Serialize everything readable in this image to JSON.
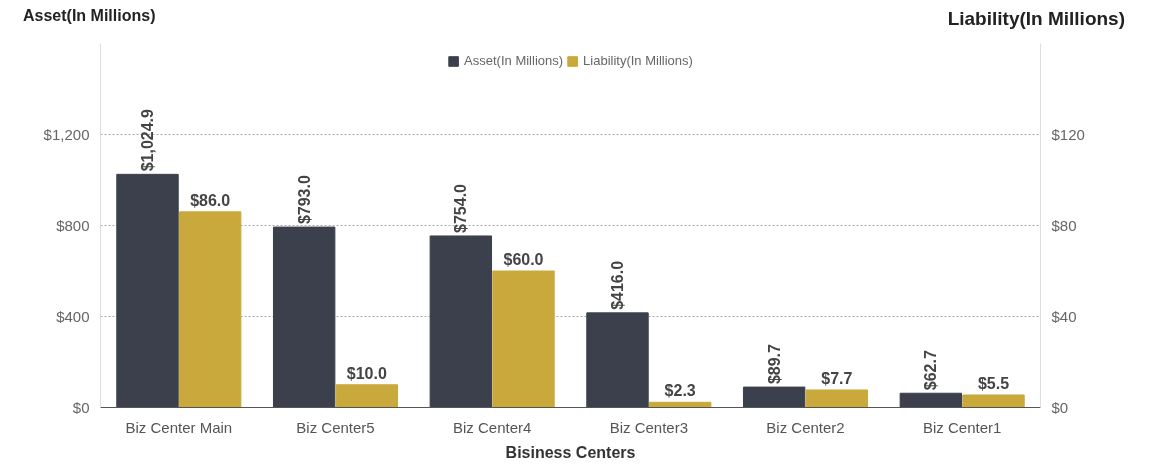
{
  "chart_data": {
    "type": "bar",
    "categories": [
      "Biz Center Main",
      "Biz Center5",
      "Biz Center4",
      "Biz Center3",
      "Biz Center2",
      "Biz Center1"
    ],
    "xlabel": "Bisiness Centers",
    "ylabel": "Asset(In Millions)",
    "y2label": "Liability(In Millions)",
    "series": [
      {
        "name": "Asset(In Millions)",
        "color": "#3b404c",
        "values": [
          1024.9,
          793.0,
          754.0,
          416.0,
          89.7,
          62.7
        ],
        "value_labels": [
          "$1,024.9",
          "$793.0",
          "$754.0",
          "$416.0",
          "$89.7",
          "$62.7"
        ]
      },
      {
        "name": "Liability(In Millions)",
        "color": "#c9a83c",
        "axis": "y2",
        "values": [
          86.0,
          10.0,
          60.0,
          2.3,
          7.7,
          5.5
        ],
        "value_labels": [
          "$86.0",
          "$10.0",
          "$60.0",
          "$2.3",
          "$7.7",
          "$5.5"
        ]
      }
    ],
    "ylim": [
      0,
      1600
    ],
    "yticks": [
      {
        "value": 0,
        "label": "$0"
      },
      {
        "value": 400,
        "label": "$400"
      },
      {
        "value": 800,
        "label": "$800"
      },
      {
        "value": 1200,
        "label": "$1,200"
      }
    ],
    "y2lim": [
      0,
      160
    ],
    "y2ticks": [
      {
        "value": 0,
        "label": "$0"
      },
      {
        "value": 40,
        "label": "$40"
      },
      {
        "value": 80,
        "label": "$80"
      },
      {
        "value": 120,
        "label": "$120"
      }
    ],
    "grid": "y",
    "legend": "top"
  }
}
